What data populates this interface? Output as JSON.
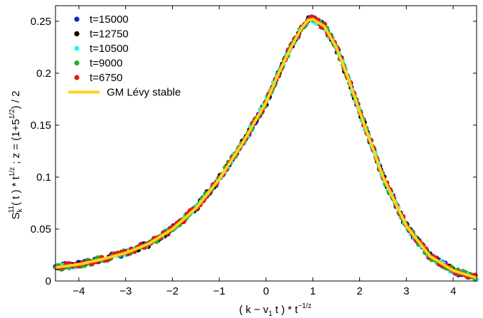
{
  "chart_data": {
    "type": "scatter",
    "xlabel": {
      "main": "( k − v",
      "sub": "1",
      "mid": " t ) *  t",
      "sup": "−1/z"
    },
    "ylabel": {
      "s": "S",
      "sub": "k",
      "sup": "11",
      "a": "( t ) *  t",
      "sup2": "1/z",
      "b": "  ;   z = (1+5",
      "sup3": "1/2",
      "c": ") / 2"
    },
    "xlim": [
      -4.5,
      4.5
    ],
    "ylim": [
      0,
      0.265
    ],
    "xticks": [
      -4,
      -3,
      -2,
      -1,
      0,
      1,
      2,
      3,
      4
    ],
    "xtick_labels": [
      "−4",
      "−3",
      "−2",
      "−1",
      "0",
      "1",
      "2",
      "3",
      "4"
    ],
    "yticks": [
      0,
      0.05,
      0.1,
      0.15,
      0.2,
      0.25
    ],
    "ytick_labels": [
      "0",
      "0.05",
      "0.1",
      "0.15",
      "0.2",
      "0.25"
    ],
    "grid": false,
    "legend_position": "top-left",
    "series": [
      {
        "name": "t=15000",
        "color": "#1c1cd6",
        "marker": "dot",
        "x_step": 0.07,
        "y_jitter": 0.0025
      },
      {
        "name": "t=12750",
        "color": "#000000",
        "marker": "dot",
        "x_step": 0.07,
        "y_jitter": 0.0025
      },
      {
        "name": "t=10500",
        "color": "#2ff2f2",
        "marker": "dot",
        "x_step": 0.07,
        "y_jitter": 0.0025
      },
      {
        "name": "t=9000",
        "color": "#20b420",
        "marker": "dot",
        "x_step": 0.07,
        "y_jitter": 0.0025
      },
      {
        "name": "t=6750",
        "color": "#e01c1c",
        "marker": "dot",
        "x_step": 0.07,
        "y_jitter": 0.0025
      }
    ],
    "curve": {
      "name": "GM Lévy stable",
      "color": "#ffd21a",
      "x": [
        -4.5,
        -4.0,
        -3.5,
        -3.0,
        -2.5,
        -2.0,
        -1.5,
        -1.0,
        -0.5,
        0.0,
        0.25,
        0.5,
        0.75,
        0.9,
        1.0,
        1.25,
        1.5,
        1.75,
        2.0,
        2.5,
        3.0,
        3.5,
        4.0,
        4.5
      ],
      "y": [
        0.013,
        0.016,
        0.021,
        0.027,
        0.036,
        0.05,
        0.07,
        0.098,
        0.133,
        0.172,
        0.198,
        0.222,
        0.243,
        0.251,
        0.252,
        0.245,
        0.225,
        0.196,
        0.163,
        0.1,
        0.053,
        0.024,
        0.01,
        0.003
      ]
    }
  }
}
